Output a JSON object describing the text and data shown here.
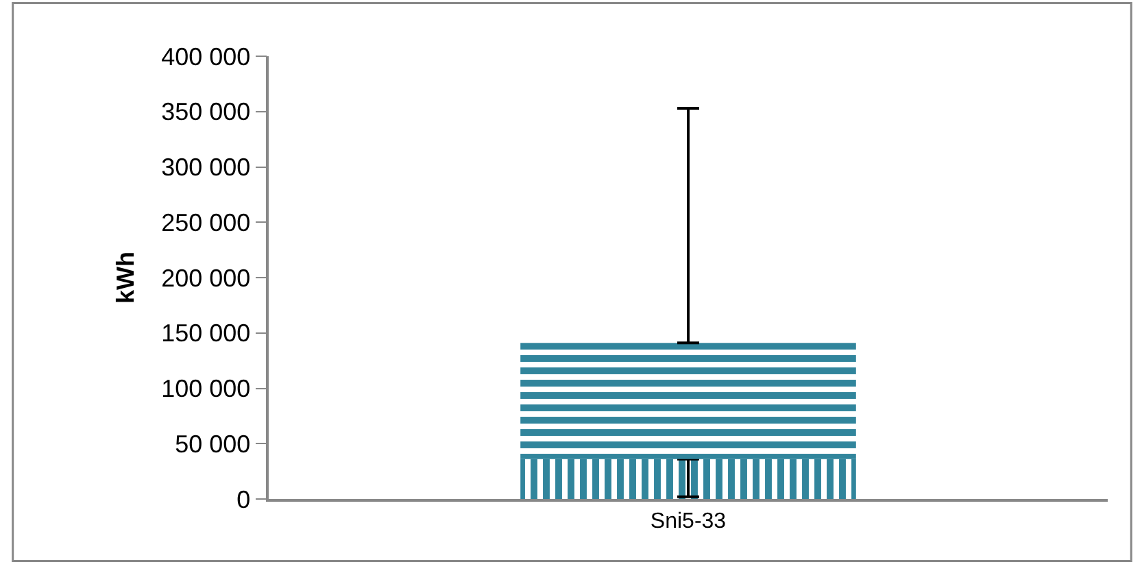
{
  "chart_data": {
    "type": "bar",
    "ylabel": "kWh",
    "categories": [
      "Sni5-33"
    ],
    "series": [
      {
        "color": "#31859c",
        "values": [
          36000
        ],
        "errors": [
          [
            2000,
            36000
          ]
        ]
      },
      {
        "color": "#31859c",
        "values": [
          105000
        ],
        "errors": [
          [
            141000,
            353000
          ]
        ]
      }
    ],
    "ylim": [
      0,
      400000
    ],
    "yticks": [
      {
        "value": 0,
        "label": "0"
      },
      {
        "value": 50000,
        "label": "50 000"
      },
      {
        "value": 100000,
        "label": "100 000"
      },
      {
        "value": 150000,
        "label": "150 000"
      },
      {
        "value": 200000,
        "label": "200 000"
      },
      {
        "value": 250000,
        "label": "250 000"
      },
      {
        "value": 300000,
        "label": "300 000"
      },
      {
        "value": 350000,
        "label": "350 000"
      },
      {
        "value": 400000,
        "label": "400 000"
      }
    ],
    "stacked": true
  }
}
